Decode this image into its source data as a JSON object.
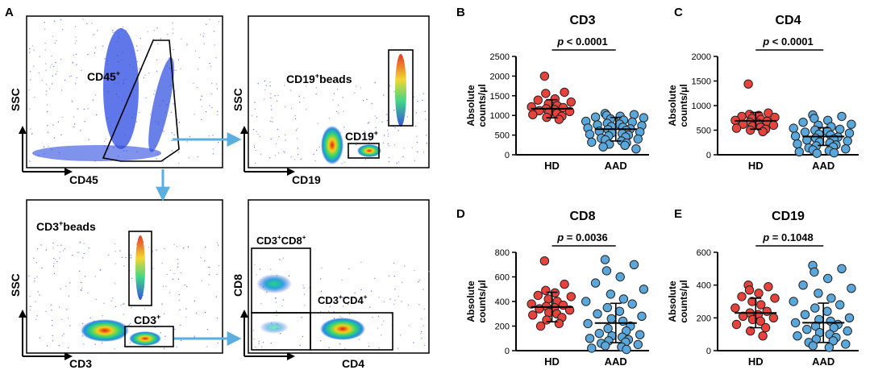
{
  "panel_letters": [
    "A",
    "B",
    "C",
    "D",
    "E"
  ],
  "colors": {
    "hd": "#e8423c",
    "aad": "#5aa7dc",
    "arrow": "#5aaee0",
    "gate": "#000000",
    "density_low": "#1f3fd6",
    "density_mid": "#2bd27a",
    "density_high": "#f2d11a",
    "density_peak": "#e21f14"
  },
  "flow_plots": [
    {
      "id": "A1",
      "ylabel": "SSC",
      "xlabel": "CD45",
      "gates": [
        {
          "label": "CD45",
          "sup": "+"
        }
      ]
    },
    {
      "id": "A2",
      "ylabel": "SSC",
      "xlabel": "CD19",
      "gates": [
        {
          "label": "CD19",
          "sup": "+",
          "suffix": "beads"
        },
        {
          "label": "CD19",
          "sup": "+"
        }
      ]
    },
    {
      "id": "A3",
      "ylabel": "SSC",
      "xlabel": "CD3",
      "gates": [
        {
          "label": "CD3",
          "sup": "+",
          "suffix": "beads"
        },
        {
          "label": "CD3",
          "sup": "+"
        }
      ]
    },
    {
      "id": "A4",
      "ylabel": "CD8",
      "xlabel": "CD4",
      "gates": [
        {
          "label": "CD3",
          "sup": "+",
          "label2": "CD8",
          "sup2": "+"
        },
        {
          "label": "CD3",
          "sup": "+",
          "label2": "CD4",
          "sup2": "+"
        }
      ]
    }
  ],
  "chart_data": [
    {
      "panel": "B",
      "type": "scatter",
      "title": "CD3",
      "xlabel": "",
      "ylabel": "Absolute counts/μl",
      "categories": [
        "HD",
        "AAD"
      ],
      "ylim": [
        0,
        2500
      ],
      "yticks": [
        0,
        500,
        1000,
        1500,
        2000,
        2500
      ],
      "p_value": "p < 0.0001",
      "series": [
        {
          "name": "HD",
          "mean": 1170,
          "sd": 230,
          "values": [
            2000,
            1590,
            1560,
            1420,
            1390,
            1340,
            1300,
            1250,
            1220,
            1200,
            1170,
            1150,
            1120,
            1100,
            1080,
            1050,
            1020,
            980,
            950,
            900
          ]
        },
        {
          "name": "AAD",
          "mean": 650,
          "sd": 300,
          "values": [
            1050,
            1020,
            1000,
            980,
            960,
            940,
            910,
            880,
            850,
            830,
            800,
            780,
            760,
            740,
            720,
            700,
            680,
            660,
            640,
            620,
            600,
            580,
            560,
            540,
            520,
            500,
            480,
            450,
            420,
            400,
            380,
            350,
            320,
            300,
            270,
            240,
            200,
            150
          ]
        }
      ]
    },
    {
      "panel": "C",
      "type": "scatter",
      "title": "CD4",
      "xlabel": "",
      "ylabel": "Absolute counts/μl",
      "categories": [
        "HD",
        "AAD"
      ],
      "ylim": [
        0,
        2000
      ],
      "yticks": [
        0,
        500,
        1000,
        1500,
        2000
      ],
      "p_value": "p < 0.0001",
      "series": [
        {
          "name": "HD",
          "mean": 690,
          "sd": 170,
          "values": [
            1440,
            850,
            820,
            800,
            780,
            760,
            740,
            720,
            700,
            680,
            660,
            640,
            620,
            600,
            580,
            560,
            540,
            520,
            500,
            470
          ]
        },
        {
          "name": "AAD",
          "mean": 370,
          "sd": 180,
          "values": [
            810,
            780,
            740,
            700,
            660,
            620,
            600,
            570,
            540,
            520,
            500,
            480,
            460,
            440,
            420,
            400,
            380,
            360,
            340,
            320,
            300,
            280,
            260,
            240,
            220,
            200,
            180,
            160,
            140,
            120,
            100,
            80,
            60,
            40,
            30
          ]
        }
      ]
    },
    {
      "panel": "D",
      "type": "scatter",
      "title": "CD8",
      "xlabel": "",
      "ylabel": "Absolute counts/μl",
      "categories": [
        "HD",
        "AAD"
      ],
      "ylim": [
        0,
        800
      ],
      "yticks": [
        0,
        200,
        400,
        600,
        800
      ],
      "p_value": "p = 0.0036",
      "series": [
        {
          "name": "HD",
          "mean": 355,
          "sd": 120,
          "values": [
            730,
            540,
            490,
            470,
            450,
            440,
            420,
            400,
            380,
            370,
            360,
            350,
            340,
            330,
            310,
            300,
            290,
            270,
            250,
            220,
            200
          ]
        },
        {
          "name": "AAD",
          "mean": 225,
          "sd": 160,
          "values": [
            740,
            700,
            650,
            600,
            550,
            500,
            460,
            420,
            400,
            380,
            350,
            320,
            300,
            280,
            260,
            240,
            220,
            200,
            180,
            160,
            140,
            130,
            120,
            110,
            100,
            90,
            80,
            70,
            60,
            50,
            40,
            30,
            20,
            10
          ]
        }
      ]
    },
    {
      "panel": "E",
      "type": "scatter",
      "title": "CD19",
      "xlabel": "",
      "ylabel": "Absolute counts/μl",
      "categories": [
        "HD",
        "AAD"
      ],
      "ylim": [
        0,
        600
      ],
      "yticks": [
        0,
        200,
        400,
        600
      ],
      "p_value": "p = 0.1048",
      "series": [
        {
          "name": "HD",
          "mean": 230,
          "sd": 90,
          "values": [
            400,
            390,
            370,
            350,
            330,
            320,
            300,
            280,
            260,
            240,
            230,
            220,
            210,
            200,
            190,
            180,
            160,
            140,
            120,
            90
          ]
        },
        {
          "name": "AAD",
          "mean": 170,
          "sd": 120,
          "values": [
            520,
            500,
            480,
            440,
            400,
            380,
            350,
            320,
            300,
            280,
            260,
            240,
            220,
            200,
            190,
            180,
            170,
            160,
            150,
            140,
            130,
            120,
            110,
            100,
            90,
            80,
            70,
            60,
            50,
            40,
            30,
            20
          ]
        }
      ]
    }
  ]
}
